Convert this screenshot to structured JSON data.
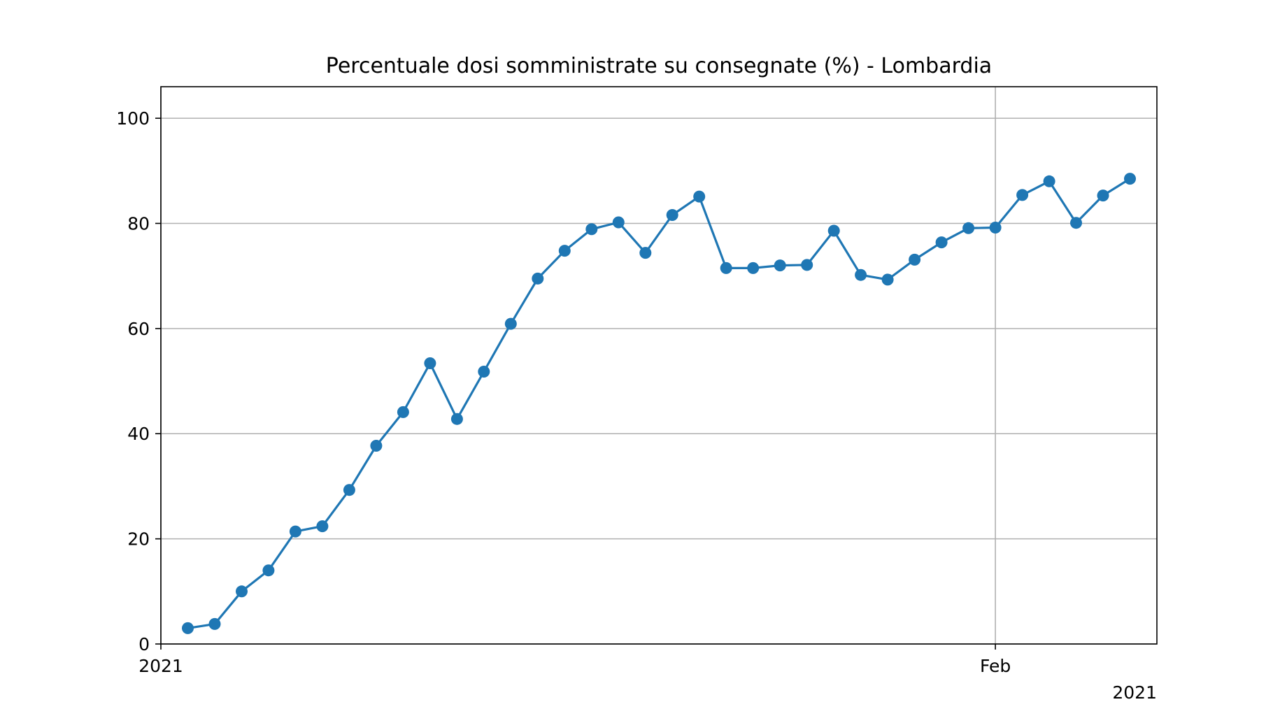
{
  "chart_data": {
    "type": "line",
    "title": "Percentuale dosi somministrate su consegnate (%) - Lombardia",
    "xlabel": "",
    "ylabel": "",
    "x": [
      "2021-01-02",
      "2021-01-03",
      "2021-01-04",
      "2021-01-05",
      "2021-01-06",
      "2021-01-07",
      "2021-01-08",
      "2021-01-09",
      "2021-01-10",
      "2021-01-11",
      "2021-01-12",
      "2021-01-13",
      "2021-01-14",
      "2021-01-15",
      "2021-01-16",
      "2021-01-17",
      "2021-01-18",
      "2021-01-19",
      "2021-01-20",
      "2021-01-21",
      "2021-01-22",
      "2021-01-23",
      "2021-01-24",
      "2021-01-25",
      "2021-01-26",
      "2021-01-27",
      "2021-01-28",
      "2021-01-29",
      "2021-01-30",
      "2021-01-31",
      "2021-02-01",
      "2021-02-02",
      "2021-02-03",
      "2021-02-04",
      "2021-02-05",
      "2021-02-06"
    ],
    "series": [
      {
        "name": "",
        "values": [
          3.0,
          3.8,
          10.0,
          14.0,
          21.4,
          22.4,
          29.3,
          37.7,
          44.1,
          53.4,
          42.8,
          51.8,
          60.9,
          69.5,
          74.8,
          78.9,
          80.2,
          74.4,
          81.6,
          85.1,
          71.5,
          71.5,
          72.0,
          72.1,
          78.6,
          70.2,
          69.3,
          73.1,
          76.4,
          79.1,
          79.2,
          85.4,
          88.0,
          80.1,
          85.3,
          88.5
        ]
      }
    ],
    "xlim": [
      "2021-01-01",
      "2021-02-07"
    ],
    "ylim": [
      0,
      106
    ],
    "yticks": [
      0,
      20,
      40,
      60,
      80,
      100
    ],
    "xticks": [
      {
        "date": "2021-01-01",
        "label": "2021"
      },
      {
        "date": "2021-02-01",
        "label": "Feb"
      }
    ],
    "x_offset_label": "2021",
    "grid": true,
    "line_color": "#1f77b4",
    "grid_color": "#b0b0b0"
  }
}
